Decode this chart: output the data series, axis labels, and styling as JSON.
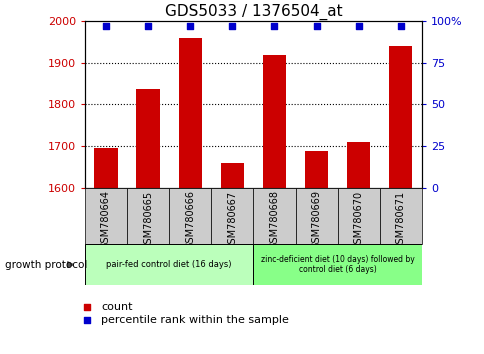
{
  "title": "GDS5033 / 1376504_at",
  "categories": [
    "GSM780664",
    "GSM780665",
    "GSM780666",
    "GSM780667",
    "GSM780668",
    "GSM780669",
    "GSM780670",
    "GSM780671"
  ],
  "bar_values": [
    1695,
    1838,
    1960,
    1658,
    1920,
    1688,
    1710,
    1940
  ],
  "percentile_values": [
    97,
    97,
    97,
    97,
    97,
    97,
    97,
    97
  ],
  "ylim_left": [
    1600,
    2000
  ],
  "ylim_right": [
    0,
    100
  ],
  "yticks_left": [
    1600,
    1700,
    1800,
    1900,
    2000
  ],
  "yticks_right": [
    0,
    25,
    50,
    75,
    100
  ],
  "bar_color": "#cc0000",
  "percentile_color": "#0000cc",
  "bar_width": 0.55,
  "group1_label": "pair-fed control diet (16 days)",
  "group2_label": "zinc-deficient diet (10 days) followed by\ncontrol diet (6 days)",
  "group1_indices": [
    0,
    1,
    2,
    3
  ],
  "group2_indices": [
    4,
    5,
    6,
    7
  ],
  "protocol_label": "growth protocol",
  "legend_bar_label": "count",
  "legend_dot_label": "percentile rank within the sample",
  "group1_color": "#bbffbb",
  "group2_color": "#88ff88",
  "tick_label_bg": "#cccccc",
  "title_fontsize": 11,
  "tick_fontsize": 8,
  "label_fontsize": 7,
  "legend_fontsize": 8
}
